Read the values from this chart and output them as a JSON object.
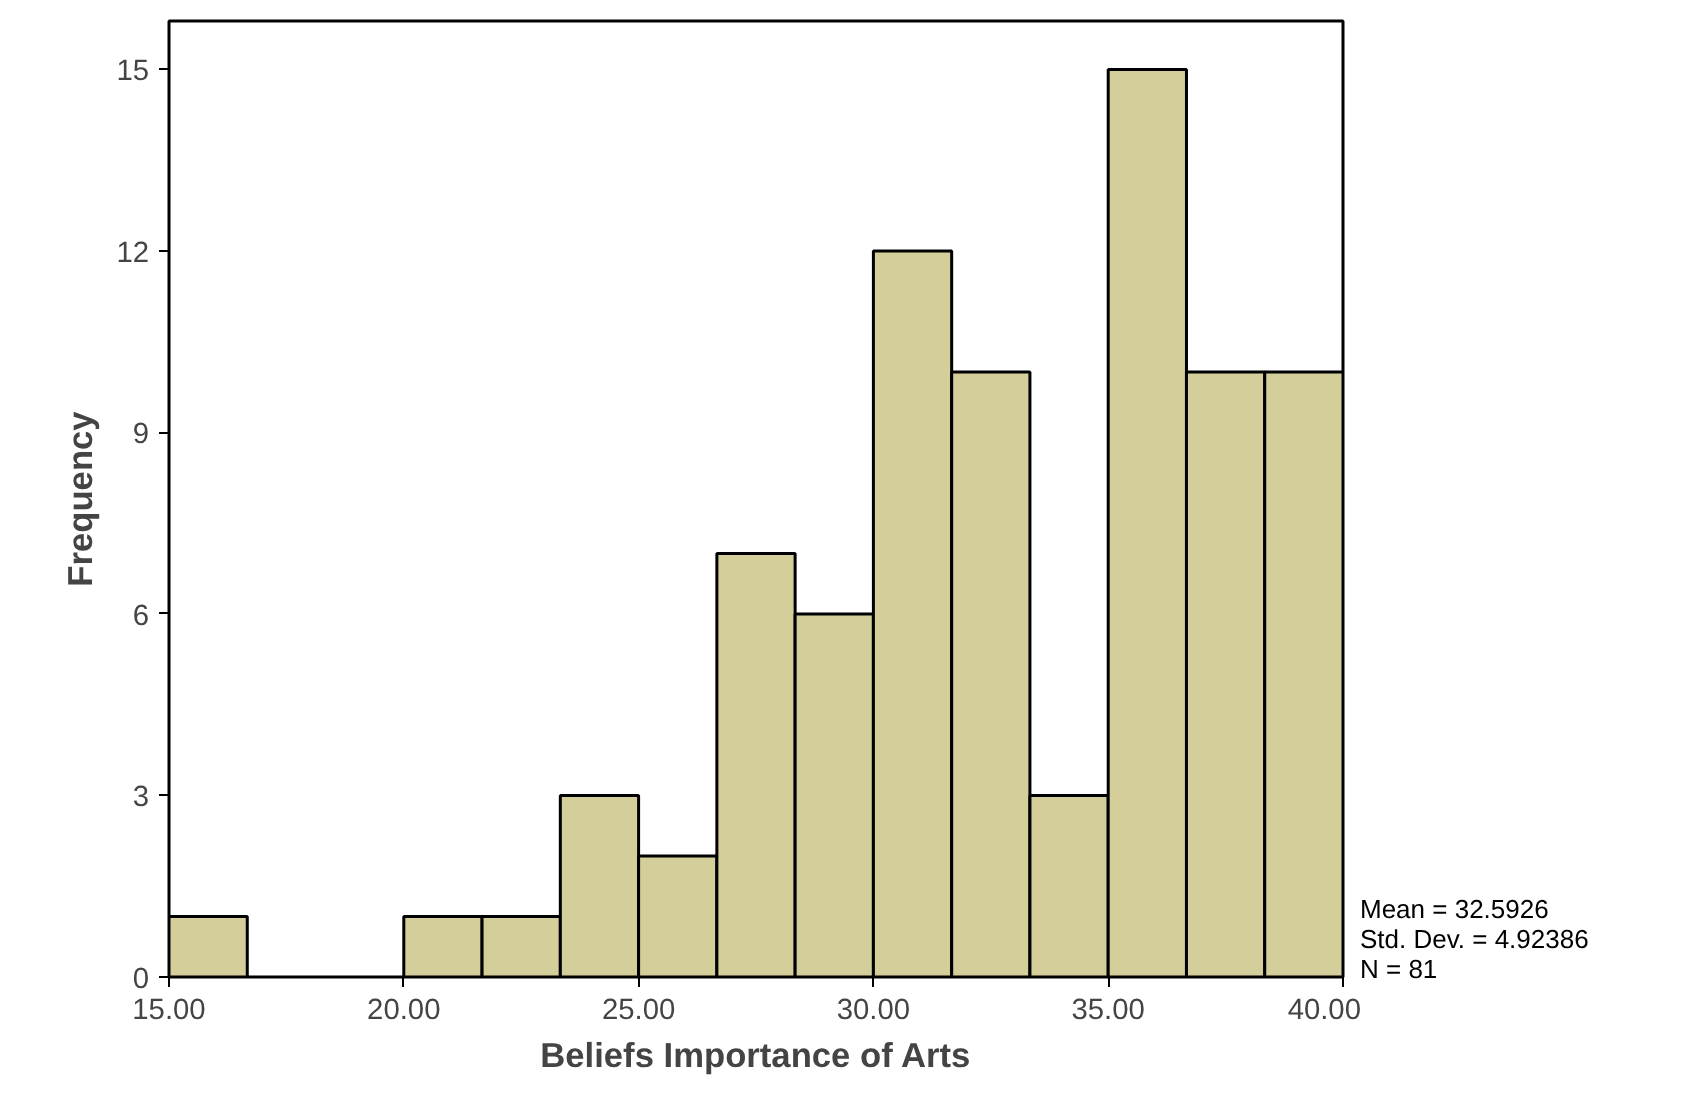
{
  "chart_data": {
    "type": "histogram",
    "xlabel": "Beliefs Importance of Arts",
    "ylabel": "Frequency",
    "bins": [
      15,
      16.6667,
      18.3333,
      20,
      21.6667,
      23.3333,
      25,
      26.6667,
      28.3333,
      30,
      31.6667,
      33.3333,
      35,
      36.6667,
      38.3333,
      40
    ],
    "values": [
      1,
      0,
      0,
      1,
      1,
      3,
      2,
      7,
      6,
      12,
      10,
      3,
      15,
      10,
      10
    ],
    "color": "#d3ce9a",
    "xlim": [
      15,
      40
    ],
    "xticks": [
      {
        "value": 15,
        "label": "15.00"
      },
      {
        "value": 20,
        "label": "20.00"
      },
      {
        "value": 25,
        "label": "25.00"
      },
      {
        "value": 30,
        "label": "30.00"
      },
      {
        "value": 35,
        "label": "35.00"
      },
      {
        "value": 40,
        "label": "40.00"
      }
    ],
    "ylim": [
      0,
      15.8
    ],
    "yticks": [
      0,
      3,
      6,
      9,
      12,
      15
    ],
    "grid": false,
    "annotations": [
      "Mean = 32.5926",
      "Std. Dev. = 4.92386",
      "N = 81"
    ]
  }
}
